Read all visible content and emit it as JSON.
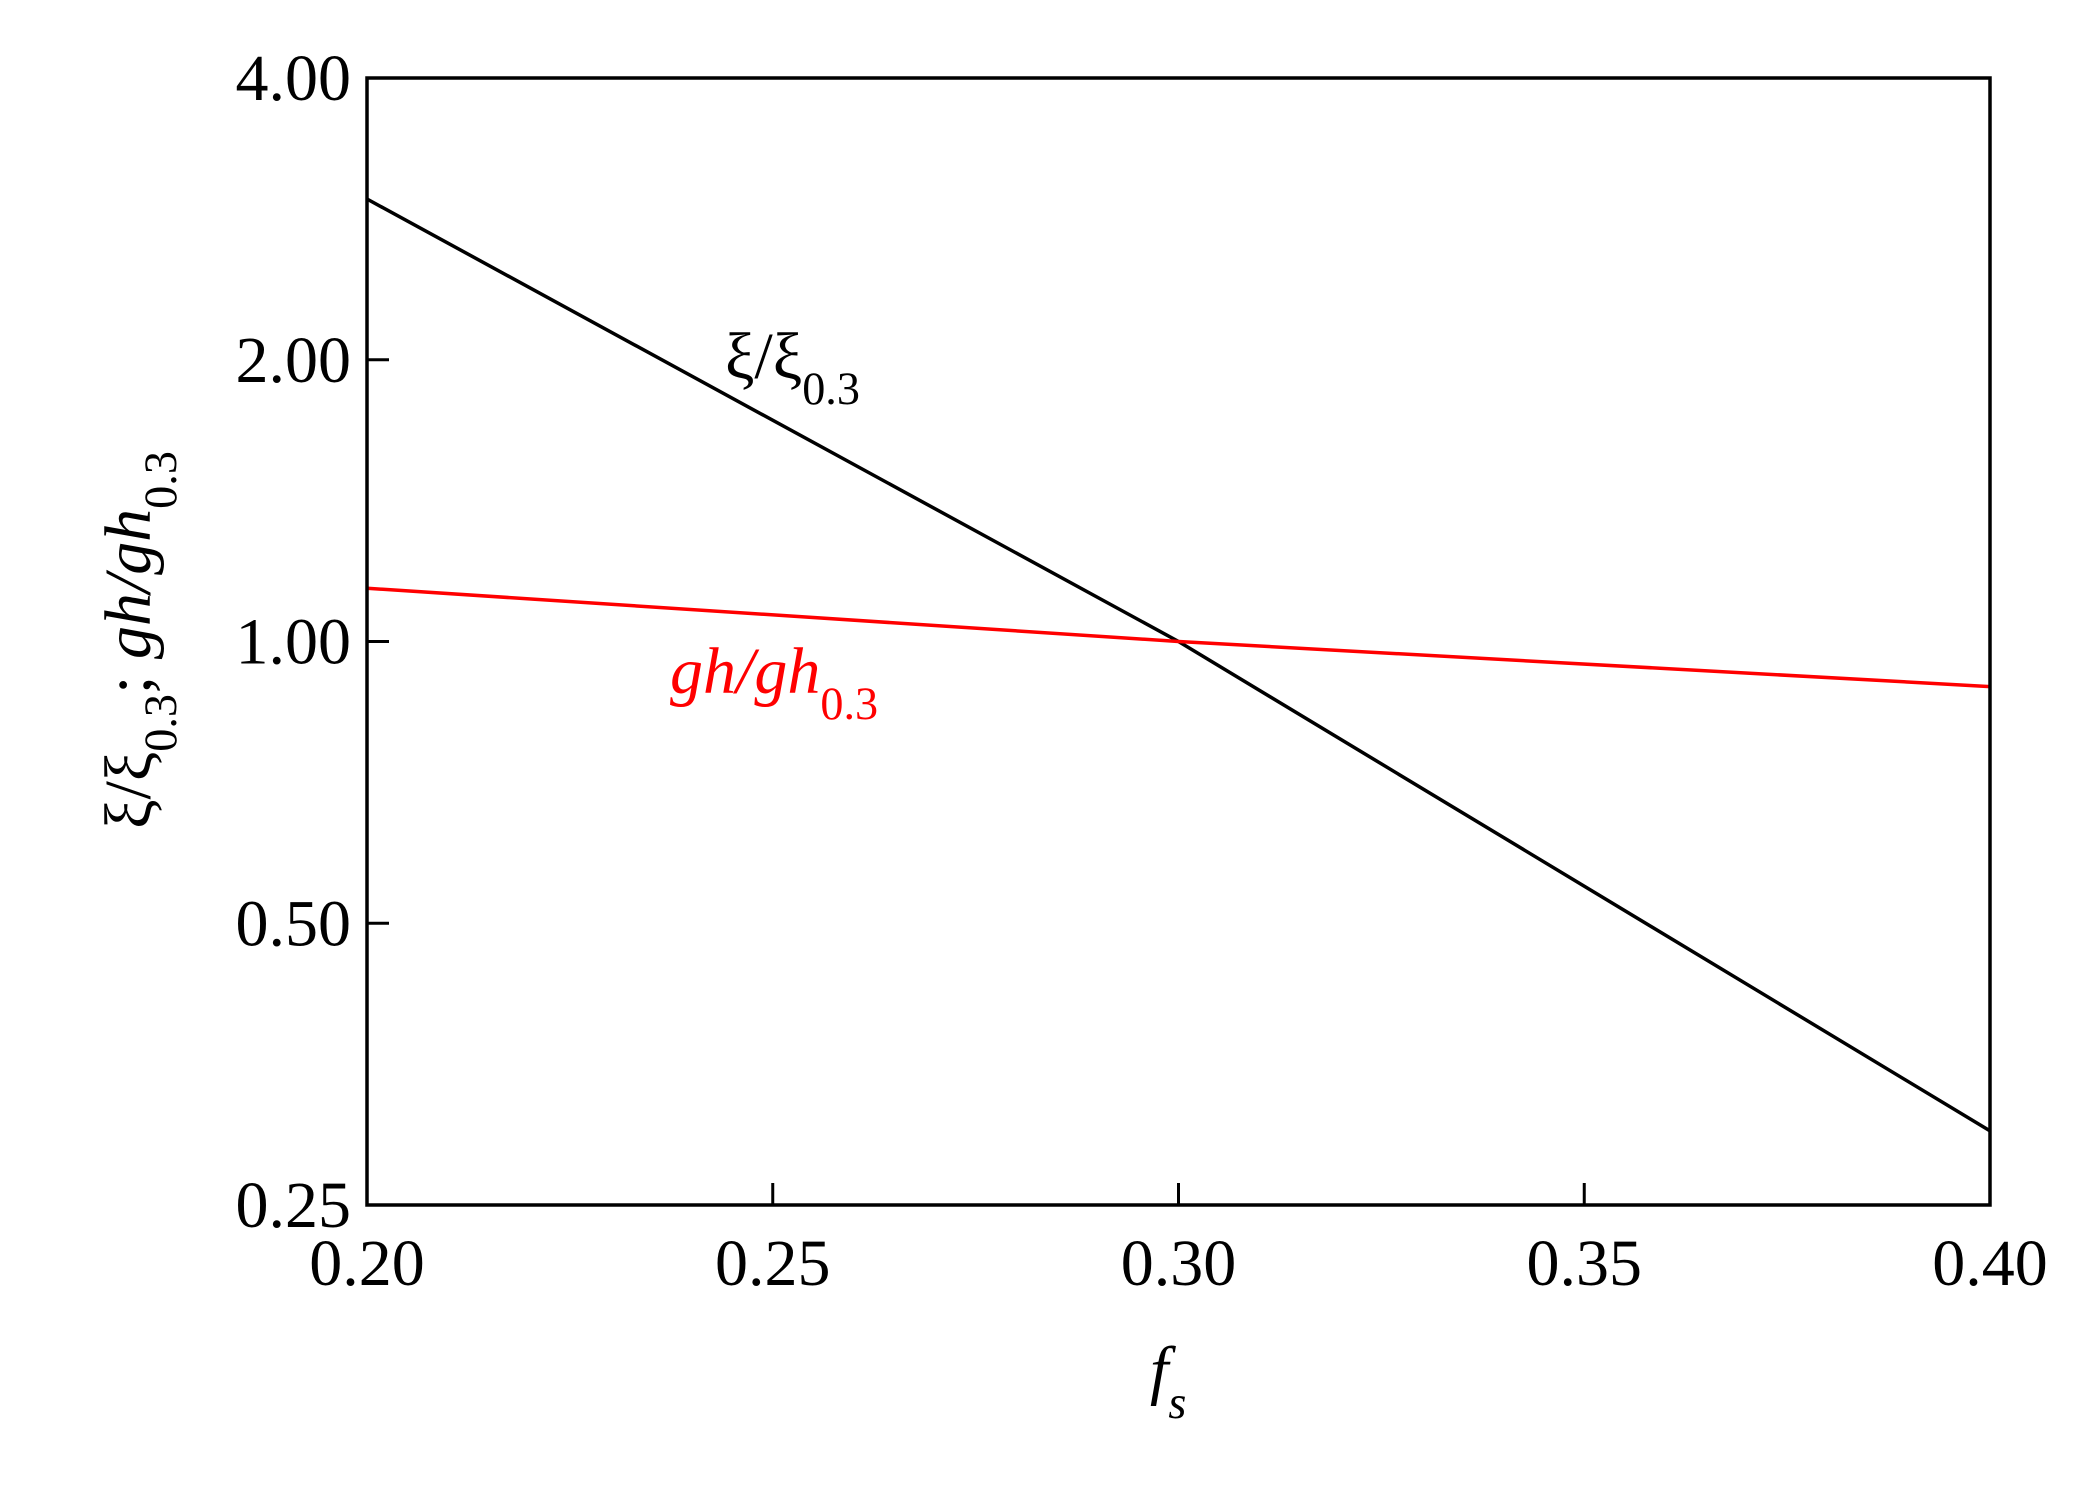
{
  "chart_data": {
    "type": "line",
    "ylabel": [
      "ξ/ξ",
      "0.3",
      "; ",
      "gh/gh",
      "0.3"
    ],
    "xlabel": [
      "f",
      "s"
    ],
    "x": [
      0.2,
      0.3,
      0.4
    ],
    "series": [
      {
        "name": [
          "ξ/ξ",
          "0.3"
        ],
        "color": "#000000",
        "values": [
          2.97,
          1.0,
          0.3
        ]
      },
      {
        "name": [
          "gh/gh",
          "0.3"
        ],
        "color": "#ff0000",
        "values": [
          1.14,
          1.0,
          0.895
        ]
      }
    ],
    "xlim": [
      0.2,
      0.4
    ],
    "xticks": [
      {
        "value": 0.2,
        "label": "0.20"
      },
      0.25,
      {
        "value": 0.3,
        "label": "0.30"
      },
      0.35,
      {
        "value": 0.4,
        "label": "0.40"
      }
    ],
    "ylim": [
      0.25,
      4
    ],
    "yticks": [
      0.25,
      {
        "value": 0.5,
        "label": "0.50"
      },
      {
        "value": 1,
        "label": "1.00"
      },
      {
        "value": 2,
        "label": "2.00"
      },
      {
        "value": 4,
        "label": "4.00"
      }
    ],
    "ylog": true,
    "log_base": 2,
    "grid": false
  }
}
